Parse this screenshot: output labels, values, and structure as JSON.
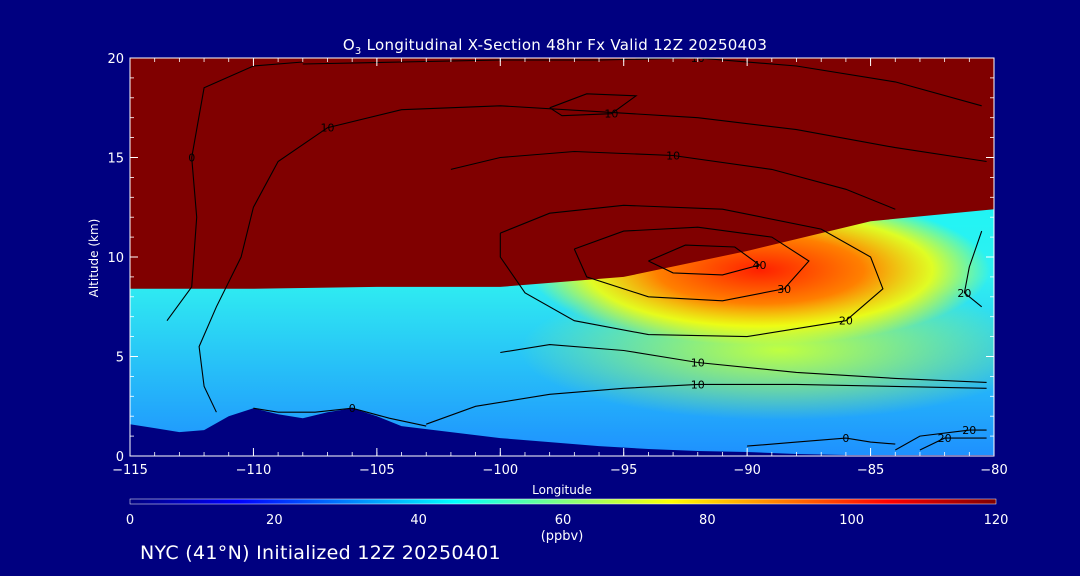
{
  "chart_data": {
    "type": "heatmap",
    "title_prefix": "O",
    "title_sub": "3",
    "title_rest": " Longitudinal X-Section 48hr  Fx Valid 12Z 20250403",
    "xlabel": "Longitude",
    "ylabel": "Altitude (km)",
    "xlim": [
      -115,
      -80
    ],
    "ylim": [
      0,
      20
    ],
    "x_ticks": [
      "-115",
      "-110",
      "-105",
      "-100",
      "-95",
      "-90",
      "-85",
      "-80"
    ],
    "y_ticks": [
      "0",
      "5",
      "10",
      "15",
      "20"
    ],
    "colorbar": {
      "range": [
        0,
        120
      ],
      "ticks": [
        "0",
        "20",
        "40",
        "60",
        "80",
        "100",
        "120"
      ],
      "unit": "(ppbv)"
    },
    "terrain_km": [
      [
        -115,
        1.6
      ],
      [
        -114,
        1.4
      ],
      [
        -113,
        1.2
      ],
      [
        -112,
        1.3
      ],
      [
        -111,
        2.0
      ],
      [
        -110,
        2.4
      ],
      [
        -109,
        2.1
      ],
      [
        -108,
        1.9
      ],
      [
        -107,
        2.2
      ],
      [
        -106,
        2.4
      ],
      [
        -105,
        2.0
      ],
      [
        -104,
        1.5
      ],
      [
        -102,
        1.2
      ],
      [
        -100,
        0.9
      ],
      [
        -98,
        0.7
      ],
      [
        -96,
        0.5
      ],
      [
        -94,
        0.35
      ],
      [
        -92,
        0.25
      ],
      [
        -90,
        0.2
      ],
      [
        -88,
        0.1
      ],
      [
        -86,
        0.05
      ],
      [
        -84,
        0.05
      ],
      [
        -82,
        0.05
      ],
      [
        -80,
        0.05
      ]
    ],
    "tropopause_km": [
      [
        -115,
        8.4
      ],
      [
        -110,
        8.4
      ],
      [
        -105,
        8.5
      ],
      [
        -100,
        8.5
      ],
      [
        -95,
        9.0
      ],
      [
        -90,
        10.3
      ],
      [
        -85,
        11.8
      ],
      [
        -80,
        12.4
      ]
    ],
    "contour_labels": [
      "0",
      "10",
      "20",
      "30",
      "40"
    ],
    "contours": [
      {
        "label": "0",
        "pts": [
          [
            -110,
            2.4
          ],
          [
            -109,
            2.2
          ],
          [
            -107.5,
            2.2
          ],
          [
            -106,
            2.4
          ],
          [
            -104.5,
            1.9
          ],
          [
            -103,
            1.5
          ]
        ]
      },
      {
        "label": "0",
        "pts": [
          [
            -113.5,
            6.8
          ],
          [
            -112.5,
            8.5
          ],
          [
            -112.3,
            12
          ],
          [
            -112.5,
            15
          ],
          [
            -112,
            18.5
          ],
          [
            -110,
            19.6
          ],
          [
            -108,
            19.8
          ]
        ]
      },
      {
        "label": "0",
        "pts": [
          [
            -90,
            0.5
          ],
          [
            -88,
            0.7
          ],
          [
            -86,
            0.9
          ],
          [
            -85,
            0.7
          ],
          [
            -84,
            0.6
          ]
        ]
      },
      {
        "label": "10",
        "pts": [
          [
            -108,
            19.7
          ],
          [
            -104,
            19.8
          ],
          [
            -100,
            19.9
          ],
          [
            -96,
            19.9
          ],
          [
            -92,
            20
          ],
          [
            -88,
            19.6
          ],
          [
            -84,
            18.8
          ],
          [
            -80.5,
            17.6
          ]
        ]
      },
      {
        "label": "10",
        "pts": [
          [
            -111.5,
            2.2
          ],
          [
            -112,
            3.5
          ],
          [
            -112.2,
            5.5
          ],
          [
            -111.5,
            7.5
          ],
          [
            -110.5,
            10
          ],
          [
            -110,
            12.5
          ],
          [
            -109,
            14.8
          ],
          [
            -107,
            16.5
          ],
          [
            -104,
            17.4
          ],
          [
            -100,
            17.6
          ],
          [
            -96,
            17.3
          ],
          [
            -92,
            17.0
          ],
          [
            -88,
            16.4
          ],
          [
            -84,
            15.5
          ],
          [
            -80.3,
            14.8
          ]
        ]
      },
      {
        "label": "10",
        "pts": [
          [
            -98,
            17.5
          ],
          [
            -96.5,
            18.2
          ],
          [
            -94.5,
            18.1
          ],
          [
            -95.5,
            17.2
          ],
          [
            -97.5,
            17.1
          ],
          [
            -98,
            17.5
          ]
        ]
      },
      {
        "label": "10",
        "pts": [
          [
            -103,
            1.6
          ],
          [
            -101,
            2.5
          ],
          [
            -98,
            3.1
          ],
          [
            -95,
            3.4
          ],
          [
            -92,
            3.6
          ],
          [
            -88,
            3.6
          ],
          [
            -84,
            3.5
          ],
          [
            -80.3,
            3.4
          ]
        ]
      },
      {
        "label": "10",
        "pts": [
          [
            -100,
            5.2
          ],
          [
            -98,
            5.6
          ],
          [
            -95,
            5.3
          ],
          [
            -92,
            4.7
          ],
          [
            -88,
            4.2
          ],
          [
            -84,
            3.9
          ],
          [
            -80.3,
            3.7
          ]
        ]
      },
      {
        "label": "10",
        "pts": [
          [
            -102,
            14.4
          ],
          [
            -100,
            15.0
          ],
          [
            -97,
            15.3
          ],
          [
            -93,
            15.1
          ],
          [
            -89,
            14.4
          ],
          [
            -86,
            13.4
          ],
          [
            -84,
            12.4
          ]
        ]
      },
      {
        "label": "20",
        "pts": [
          [
            -100,
            11.2
          ],
          [
            -98,
            12.2
          ],
          [
            -95,
            12.6
          ],
          [
            -91,
            12.4
          ],
          [
            -87,
            11.4
          ],
          [
            -85,
            10.0
          ],
          [
            -84.5,
            8.4
          ],
          [
            -86,
            6.8
          ],
          [
            -90,
            6.0
          ],
          [
            -94,
            6.1
          ],
          [
            -97,
            6.8
          ],
          [
            -99,
            8.2
          ],
          [
            -100,
            10
          ],
          [
            -100,
            11.2
          ]
        ]
      },
      {
        "label": "20",
        "pts": [
          [
            -80.5,
            11.3
          ],
          [
            -81,
            9.5
          ],
          [
            -81.2,
            8.2
          ],
          [
            -80.5,
            7.5
          ]
        ]
      },
      {
        "label": "20",
        "pts": [
          [
            -84,
            0.3
          ],
          [
            -83,
            1.0
          ],
          [
            -81,
            1.3
          ],
          [
            -80.3,
            1.3
          ]
        ]
      },
      {
        "label": "20",
        "pts": [
          [
            -83,
            0.3
          ],
          [
            -82,
            0.9
          ],
          [
            -80.3,
            0.9
          ]
        ]
      },
      {
        "label": "30",
        "pts": [
          [
            -97,
            10.4
          ],
          [
            -95,
            11.3
          ],
          [
            -92,
            11.5
          ],
          [
            -89,
            11.0
          ],
          [
            -87.5,
            9.8
          ],
          [
            -88.5,
            8.4
          ],
          [
            -91,
            7.8
          ],
          [
            -94,
            8.0
          ],
          [
            -96.5,
            9.0
          ],
          [
            -97,
            10.4
          ]
        ]
      },
      {
        "label": "40",
        "pts": [
          [
            -94,
            9.8
          ],
          [
            -92.5,
            10.6
          ],
          [
            -90.5,
            10.5
          ],
          [
            -89.5,
            9.6
          ],
          [
            -91,
            9.1
          ],
          [
            -93,
            9.2
          ],
          [
            -94,
            9.8
          ]
        ]
      }
    ],
    "footer": "NYC (41°N) Initialized 12Z 20250401"
  }
}
